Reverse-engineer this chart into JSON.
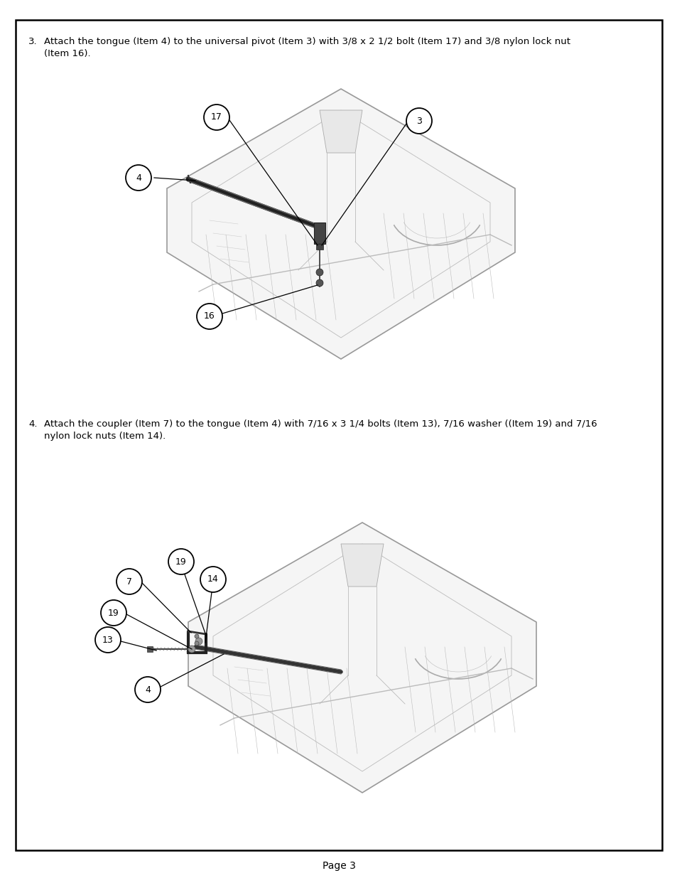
{
  "page_background": "#ffffff",
  "border_color": "#000000",
  "text_color": "#000000",
  "page_number": "Page 3",
  "section3_num": "3.",
  "section3_text": "Attach the tongue (Item 4) to the universal pivot (Item 3) with 3/8 x 2 1/2 bolt (Item 17) and 3/8 nylon lock nut\n(Item 16).",
  "section4_num": "4.",
  "section4_text": "Attach the coupler (Item 7) to the tongue (Item 4) with 7/16 x 3 1/4 bolts (Item 13), 7/16 washer ((Item 19) and 7/16\nnylon lock nuts (Item 14).",
  "line_color": "#aaaaaa",
  "dark_line_color": "#444444",
  "label_font_size": 9,
  "text_font_size": 9.5
}
